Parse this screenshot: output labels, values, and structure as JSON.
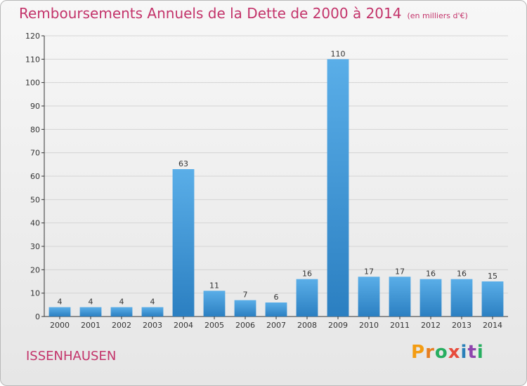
{
  "header": {
    "title": "Remboursements Annuels de la Dette de 2000 à 2014",
    "subtitle": "(en milliers d'€)"
  },
  "footer": {
    "commune": "ISSENHAUSEN",
    "logo": [
      "P",
      "r",
      "o",
      "x",
      "i",
      "t",
      "i"
    ]
  },
  "colors": {
    "bar_light": "#5aaee8",
    "bar_dark": "#2b7fc1",
    "title": "#c3336a",
    "logo": [
      "#f39c12",
      "#e67e22",
      "#27ae60",
      "#e74c3c",
      "#2980b9",
      "#8e44ad",
      "#27ae60"
    ]
  },
  "chart_data": {
    "type": "bar",
    "categories": [
      "2000",
      "2001",
      "2002",
      "2003",
      "2004",
      "2005",
      "2006",
      "2007",
      "2008",
      "2009",
      "2010",
      "2011",
      "2012",
      "2013",
      "2014"
    ],
    "values": [
      4,
      4,
      4,
      4,
      63,
      11,
      7,
      6,
      16,
      110,
      17,
      17,
      16,
      16,
      15
    ],
    "title": "Remboursements Annuels de la Dette de 2000 à 2014",
    "xlabel": "",
    "ylabel": "",
    "ylim": [
      0,
      120
    ],
    "yticks": [
      0,
      10,
      20,
      30,
      40,
      50,
      60,
      70,
      80,
      90,
      100,
      110,
      120
    ],
    "grid": true
  }
}
